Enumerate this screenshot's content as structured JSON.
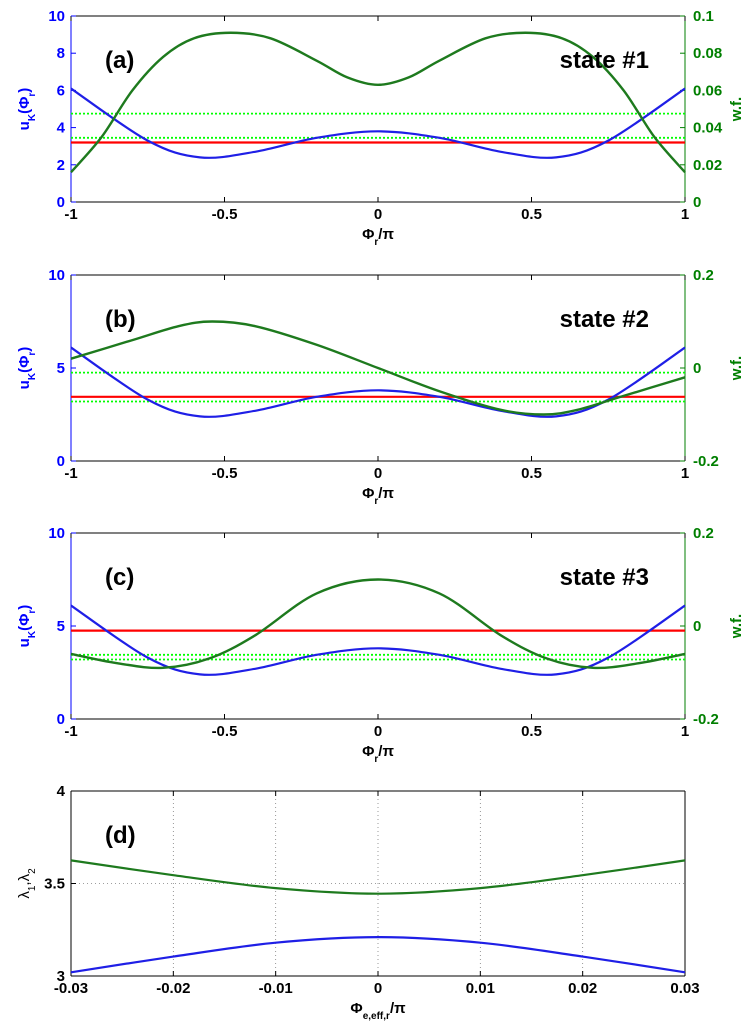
{
  "colors": {
    "left_axis": "#0000ff",
    "right_axis": "#007f00",
    "potential": "#1f1fe6",
    "wavefunction": "#1e7a1e",
    "energy_line": "#ff0000",
    "other_levels": "#00ff00",
    "lambda1": "#1f1fe6",
    "lambda2": "#1e7a1e"
  },
  "chart_data": [
    {
      "id": "a",
      "type": "line",
      "panel_label": "(a)",
      "annotation": "state #1",
      "xlabel": {
        "base": "Φ",
        "sub": "r",
        "tail": "/π"
      },
      "ylabel": {
        "base": "u",
        "sub": "K",
        "tail": "(Φ",
        "sub2": "r",
        "end": ")"
      },
      "ylabel_right": "w.f.",
      "xlim": [
        -1,
        1
      ],
      "ylim": [
        0,
        10
      ],
      "ylim_right": [
        0,
        0.1
      ],
      "xticks": [
        "-1",
        "-0.5",
        "0",
        "0.5",
        "1"
      ],
      "yticks": [
        "0",
        "2",
        "4",
        "6",
        "8",
        "10"
      ],
      "yticks_right": [
        "0",
        "0.02",
        "0.04",
        "0.06",
        "0.08",
        "0.1"
      ],
      "potential": {
        "x": [
          -1,
          -0.75,
          -0.58,
          -0.4,
          -0.2,
          0,
          0.2,
          0.4,
          0.58,
          0.75,
          1
        ],
        "y": [
          6.1,
          3.3,
          2.4,
          2.7,
          3.45,
          3.8,
          3.45,
          2.7,
          2.4,
          3.3,
          6.1
        ]
      },
      "wavefunction": {
        "x": [
          -1,
          -0.9,
          -0.8,
          -0.7,
          -0.6,
          -0.48,
          -0.35,
          -0.2,
          -0.1,
          0,
          0.1,
          0.2,
          0.35,
          0.48,
          0.6,
          0.7,
          0.8,
          0.9,
          1
        ],
        "y": [
          0.016,
          0.035,
          0.06,
          0.078,
          0.088,
          0.091,
          0.088,
          0.076,
          0.067,
          0.063,
          0.067,
          0.076,
          0.088,
          0.091,
          0.088,
          0.078,
          0.06,
          0.035,
          0.016
        ]
      },
      "energy_line": 3.2,
      "other_levels": [
        3.45,
        4.75
      ]
    },
    {
      "id": "b",
      "type": "line",
      "panel_label": "(b)",
      "annotation": "state #2",
      "xlabel": {
        "base": "Φ",
        "sub": "r",
        "tail": "/π"
      },
      "ylabel": {
        "base": "u",
        "sub": "K",
        "tail": "(Φ",
        "sub2": "r",
        "end": ")"
      },
      "ylabel_right": "w.f.",
      "xlim": [
        -1,
        1
      ],
      "ylim": [
        0,
        10
      ],
      "ylim_right": [
        -0.2,
        0.2
      ],
      "xticks": [
        "-1",
        "-0.5",
        "0",
        "0.5",
        "1"
      ],
      "yticks": [
        "0",
        "5",
        "10"
      ],
      "yticks_right": [
        "-0.2",
        "0",
        "0.2"
      ],
      "potential": {
        "x": [
          -1,
          -0.75,
          -0.58,
          -0.4,
          -0.2,
          0,
          0.2,
          0.4,
          0.58,
          0.75,
          1
        ],
        "y": [
          6.1,
          3.3,
          2.4,
          2.7,
          3.45,
          3.8,
          3.45,
          2.7,
          2.4,
          3.3,
          6.1
        ]
      },
      "wavefunction": {
        "x": [
          -1,
          -0.8,
          -0.65,
          -0.54,
          -0.4,
          -0.2,
          0,
          0.2,
          0.4,
          0.54,
          0.65,
          0.8,
          1
        ],
        "y": [
          0.02,
          0.06,
          0.09,
          0.1,
          0.09,
          0.05,
          0.0,
          -0.05,
          -0.09,
          -0.1,
          -0.09,
          -0.06,
          -0.02
        ]
      },
      "energy_line": 3.45,
      "other_levels": [
        3.2,
        4.75
      ]
    },
    {
      "id": "c",
      "type": "line",
      "panel_label": "(c)",
      "annotation": "state #3",
      "xlabel": {
        "base": "Φ",
        "sub": "r",
        "tail": "/π"
      },
      "ylabel": {
        "base": "u",
        "sub": "K",
        "tail": "(Φ",
        "sub2": "r",
        "end": ")"
      },
      "ylabel_right": "w.f.",
      "xlim": [
        -1,
        1
      ],
      "ylim": [
        0,
        10
      ],
      "ylim_right": [
        -0.2,
        0.2
      ],
      "xticks": [
        "-1",
        "-0.5",
        "0",
        "0.5",
        "1"
      ],
      "yticks": [
        "0",
        "5",
        "10"
      ],
      "yticks_right": [
        "-0.2",
        "0",
        "0.2"
      ],
      "potential": {
        "x": [
          -1,
          -0.75,
          -0.58,
          -0.4,
          -0.2,
          0,
          0.2,
          0.4,
          0.58,
          0.75,
          1
        ],
        "y": [
          6.1,
          3.3,
          2.4,
          2.7,
          3.45,
          3.8,
          3.45,
          2.7,
          2.4,
          3.3,
          6.1
        ]
      },
      "wavefunction": {
        "x": [
          -1,
          -0.85,
          -0.7,
          -0.55,
          -0.4,
          -0.2,
          0,
          0.2,
          0.4,
          0.55,
          0.7,
          0.85,
          1
        ],
        "y": [
          -0.06,
          -0.08,
          -0.09,
          -0.07,
          -0.02,
          0.07,
          0.1,
          0.07,
          -0.02,
          -0.07,
          -0.09,
          -0.08,
          -0.06
        ]
      },
      "energy_line": 4.75,
      "other_levels": [
        3.2,
        3.45
      ]
    },
    {
      "id": "d",
      "type": "line",
      "panel_label": "(d)",
      "xlabel": {
        "base": "Φ",
        "sub": "e,eff,r",
        "tail": "/π"
      },
      "ylabel": {
        "base": "λ",
        "sub": "1",
        "tail": ",λ",
        "sub2": "2",
        "end": ""
      },
      "xlim": [
        -0.03,
        0.03
      ],
      "ylim": [
        3,
        4
      ],
      "xticks": [
        "-0.03",
        "-0.02",
        "-0.01",
        "0",
        "0.01",
        "0.02",
        "0.03"
      ],
      "yticks": [
        "3",
        "3.5",
        "4"
      ],
      "grid": true,
      "series": [
        {
          "key": "lambda2",
          "x": [
            -0.03,
            -0.02,
            -0.01,
            0,
            0.01,
            0.02,
            0.03
          ],
          "y": [
            3.625,
            3.545,
            3.475,
            3.445,
            3.475,
            3.545,
            3.625
          ]
        },
        {
          "key": "lambda1",
          "x": [
            -0.03,
            -0.02,
            -0.01,
            0,
            0.01,
            0.02,
            0.03
          ],
          "y": [
            3.02,
            3.105,
            3.18,
            3.21,
            3.18,
            3.105,
            3.02
          ]
        }
      ]
    }
  ]
}
